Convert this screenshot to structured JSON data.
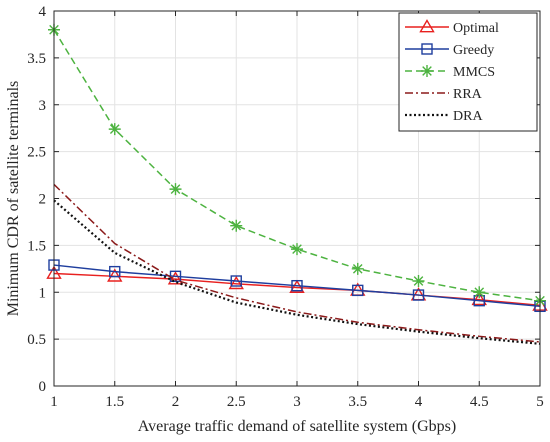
{
  "chart_data": {
    "type": "line",
    "xlabel": "Average traffic demand of satellite system (Gbps)",
    "ylabel": "Minimum CDR of satellite terminals",
    "xlim": [
      1,
      5
    ],
    "ylim": [
      0,
      4
    ],
    "xticks": [
      1,
      1.5,
      2,
      2.5,
      3,
      3.5,
      4,
      4.5,
      5
    ],
    "xtick_labels": [
      "1",
      "1.5",
      "2",
      "2.5",
      "3",
      "3.5",
      "4",
      "4.5",
      "5"
    ],
    "yticks": [
      0,
      0.5,
      1,
      1.5,
      2,
      2.5,
      3,
      3.5,
      4
    ],
    "ytick_labels": [
      "0",
      "0.5",
      "1",
      "1.5",
      "2",
      "2.5",
      "3",
      "3.5",
      "4"
    ],
    "grid": true,
    "legend_position": "top-right",
    "x": [
      1,
      1.5,
      2,
      2.5,
      3,
      3.5,
      4,
      4.5,
      5
    ],
    "series": [
      {
        "name": "Optimal",
        "values": [
          1.2,
          1.17,
          1.14,
          1.09,
          1.05,
          1.02,
          0.97,
          0.92,
          0.86
        ],
        "color": "#e8201f",
        "dash": "solid",
        "marker": "triangle"
      },
      {
        "name": "Greedy",
        "values": [
          1.29,
          1.22,
          1.17,
          1.12,
          1.07,
          1.02,
          0.97,
          0.91,
          0.85
        ],
        "color": "#1f3e9e",
        "dash": "solid",
        "marker": "square"
      },
      {
        "name": "MMCS",
        "values": [
          3.8,
          2.74,
          2.1,
          1.71,
          1.46,
          1.25,
          1.12,
          1.0,
          0.91
        ],
        "color": "#4db340",
        "dash": "dashed",
        "marker": "asterisk"
      },
      {
        "name": "RRA",
        "values": [
          2.15,
          1.52,
          1.13,
          0.94,
          0.79,
          0.68,
          0.6,
          0.53,
          0.47
        ],
        "color": "#8b1a1a",
        "dash": "dashdot",
        "marker": "none"
      },
      {
        "name": "DRA",
        "values": [
          1.98,
          1.42,
          1.11,
          0.89,
          0.76,
          0.66,
          0.58,
          0.51,
          0.45
        ],
        "color": "#111111",
        "dash": "dotted",
        "marker": "none"
      }
    ]
  }
}
